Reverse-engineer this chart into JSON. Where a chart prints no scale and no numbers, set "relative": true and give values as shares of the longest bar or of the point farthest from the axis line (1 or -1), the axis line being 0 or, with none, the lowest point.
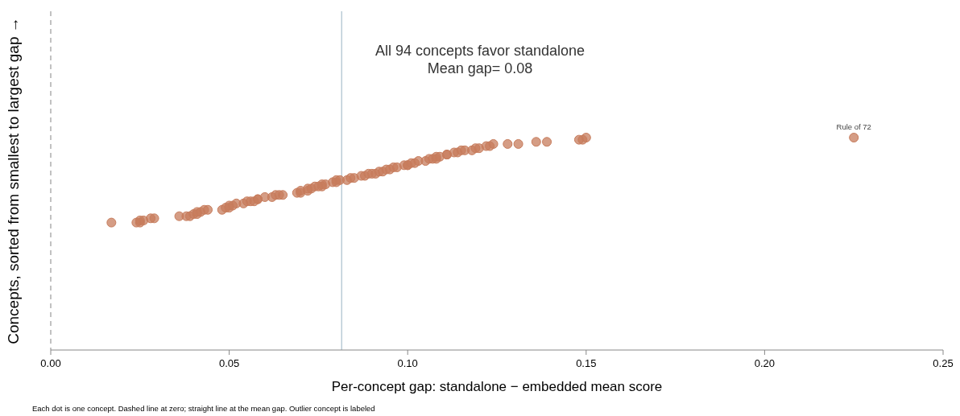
{
  "chart_data": {
    "type": "scatter",
    "title": "All 94 concepts favor standalone",
    "subtitle": "Mean gap= 0.08",
    "xlabel": "Per-concept gap: standalone − embedded mean score",
    "ylabel": "Concepts, sorted from smallest to largest gap →",
    "relative": true,
    "marker": "circle",
    "color": "#c77c5c",
    "x": [
      0.017,
      0.024,
      0.025,
      0.025,
      0.026,
      0.028,
      0.029,
      0.036,
      0.038,
      0.039,
      0.04,
      0.041,
      0.041,
      0.042,
      0.043,
      0.044,
      0.048,
      0.049,
      0.05,
      0.05,
      0.051,
      0.052,
      0.054,
      0.055,
      0.056,
      0.057,
      0.058,
      0.058,
      0.06,
      0.062,
      0.063,
      0.064,
      0.065,
      0.069,
      0.07,
      0.07,
      0.072,
      0.072,
      0.073,
      0.074,
      0.075,
      0.076,
      0.076,
      0.077,
      0.079,
      0.08,
      0.08,
      0.081,
      0.083,
      0.084,
      0.085,
      0.087,
      0.088,
      0.089,
      0.09,
      0.091,
      0.092,
      0.093,
      0.094,
      0.095,
      0.096,
      0.097,
      0.099,
      0.1,
      0.1,
      0.101,
      0.102,
      0.103,
      0.105,
      0.106,
      0.107,
      0.108,
      0.108,
      0.109,
      0.111,
      0.111,
      0.113,
      0.114,
      0.115,
      0.116,
      0.118,
      0.119,
      0.12,
      0.122,
      0.123,
      0.124,
      0.128,
      0.131,
      0.136,
      0.139,
      0.148,
      0.149,
      0.15,
      0.225
    ],
    "values": [
      0.6,
      0.6,
      0.6,
      0.61,
      0.61,
      0.62,
      0.62,
      0.63,
      0.63,
      0.63,
      0.64,
      0.64,
      0.65,
      0.65,
      0.66,
      0.66,
      0.66,
      0.67,
      0.67,
      0.68,
      0.68,
      0.69,
      0.69,
      0.7,
      0.7,
      0.7,
      0.71,
      0.71,
      0.72,
      0.72,
      0.73,
      0.73,
      0.73,
      0.74,
      0.74,
      0.75,
      0.75,
      0.76,
      0.76,
      0.77,
      0.77,
      0.77,
      0.78,
      0.78,
      0.79,
      0.79,
      0.8,
      0.8,
      0.8,
      0.81,
      0.81,
      0.82,
      0.82,
      0.83,
      0.83,
      0.83,
      0.84,
      0.84,
      0.85,
      0.85,
      0.86,
      0.86,
      0.87,
      0.87,
      0.87,
      0.88,
      0.88,
      0.89,
      0.89,
      0.9,
      0.9,
      0.9,
      0.91,
      0.91,
      0.92,
      0.92,
      0.93,
      0.93,
      0.94,
      0.94,
      0.94,
      0.95,
      0.95,
      0.96,
      0.96,
      0.97,
      0.97,
      0.97,
      0.98,
      0.98,
      0.99,
      0.99,
      1.0,
      1.0
    ],
    "xlim": [
      0,
      0.25
    ],
    "xticks": [
      {
        "value": 0,
        "label": "0.00"
      },
      {
        "value": 0.05,
        "label": "0.05"
      },
      {
        "value": 0.1,
        "label": "0.10"
      },
      {
        "value": 0.15,
        "label": "0.15"
      },
      {
        "value": 0.2,
        "label": "0.20"
      },
      {
        "value": 0.25,
        "label": "0.25"
      }
    ],
    "ref_lines": [
      {
        "axis": "x",
        "value": 0,
        "color": "#999999",
        "line_style": "dashed"
      },
      {
        "axis": "x",
        "value": 0.0815,
        "color": "#a9bfcc",
        "line_style": "solid"
      }
    ],
    "annotations": [
      {
        "text": "Rule of 72",
        "x": 0.225,
        "y": 1.0
      },
      "Each dot is one concept. Dashed line at zero; straight line at the mean gap. Outlier concept is labeled"
    ]
  }
}
